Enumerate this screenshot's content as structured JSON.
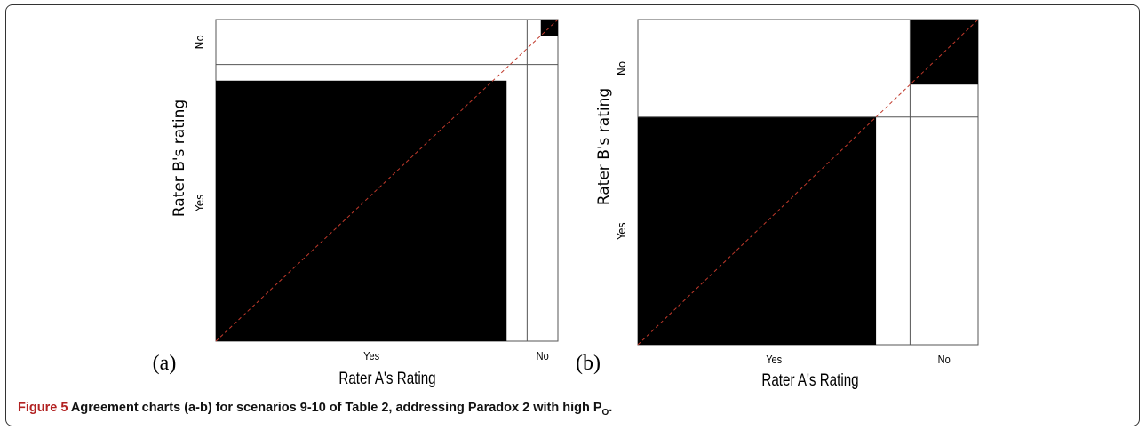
{
  "figure": {
    "caption_label": "Figure 5",
    "caption_text": "Agreement charts (a-b) for scenarios 9-10 of Table 2, addressing Paradox 2 with high P",
    "caption_sub": "O",
    "caption_end": "."
  },
  "chart_data": [
    {
      "type": "agreement",
      "panel": "(a)",
      "xlabel": "Rater A's Rating",
      "ylabel": "Rater B's rating",
      "categories": [
        "Yes",
        "No"
      ],
      "axis_range": [
        0,
        100
      ],
      "rater_a_cumulative": [
        91,
        100
      ],
      "rater_b_cumulative": [
        86,
        100
      ],
      "agreement_cells": [
        {
          "category": "Yes",
          "x0": 0,
          "x1": 85,
          "y0": 0,
          "y1": 81
        },
        {
          "category": "No",
          "x0": 95,
          "x1": 100,
          "y0": 95,
          "y1": 100
        }
      ],
      "diagonal": "dashed red"
    },
    {
      "type": "agreement",
      "panel": "(b)",
      "xlabel": "Rater A's Rating",
      "ylabel": "Rater B's rating",
      "categories": [
        "Yes",
        "No"
      ],
      "axis_range": [
        0,
        100
      ],
      "rater_a_cumulative": [
        80,
        100
      ],
      "rater_b_cumulative": [
        70,
        100
      ],
      "agreement_cells": [
        {
          "category": "Yes",
          "x0": 0,
          "x1": 70,
          "y0": 0,
          "y1": 70
        },
        {
          "category": "No",
          "x0": 80,
          "x1": 100,
          "y0": 80,
          "y1": 100
        }
      ],
      "diagonal": "dashed red"
    }
  ]
}
